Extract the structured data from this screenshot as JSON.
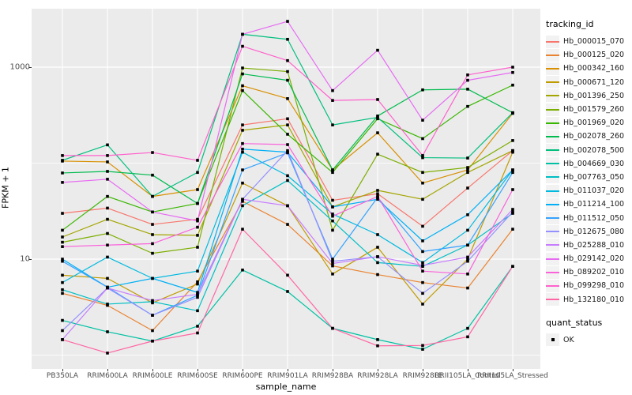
{
  "chart_data": {
    "type": "line",
    "title": "",
    "xlabel": "sample_name",
    "ylabel": "FPKM + 1",
    "y_scale": "log10",
    "y_ticks": [
      10,
      1000
    ],
    "y_minor_gridlines": [
      1,
      100
    ],
    "ylim": [
      0.75,
      4200
    ],
    "grid": true,
    "panel_bg": "#EBEBEB",
    "gridline_color": "#FFFFFF",
    "point_color": "#000000",
    "point_shape": "square",
    "legend_position": "right",
    "legend_title": "tracking_id",
    "categories": [
      "PB350LA",
      "RRIM600LA",
      "RRIM600LE",
      "RRIM600SE",
      "RRIM600PE",
      "RRIM901LA",
      "RRIM928BA",
      "RRIM928LA",
      "RRIM928LE",
      "RRII105LA_Control",
      "RRII105LA_Stressed"
    ],
    "series": [
      {
        "name": "Hb_000015_070",
        "color": "#F8766D",
        "values": [
          30,
          34,
          23,
          26,
          250,
          290,
          41,
          48,
          22,
          55,
          135
        ]
      },
      {
        "name": "Hb_000125_020",
        "color": "#EA8331",
        "values": [
          4.4,
          3.3,
          1.8,
          5.8,
          40,
          23,
          8.5,
          6.9,
          5.7,
          5.0,
          20.5
        ]
      },
      {
        "name": "Hb_000342_160",
        "color": "#D89000",
        "values": [
          105,
          103,
          45,
          53,
          640,
          470,
          85,
          207,
          62,
          85,
          330
        ]
      },
      {
        "name": "Hb_000671_120",
        "color": "#C09B00",
        "values": [
          6.8,
          6.3,
          3.5,
          5.5,
          62,
          36,
          7.0,
          13.3,
          3.4,
          10,
          130
        ]
      },
      {
        "name": "Hb_001396_250",
        "color": "#A3A500",
        "values": [
          17,
          26,
          18,
          17.7,
          220,
          250,
          35,
          52,
          42,
          80,
          135
        ]
      },
      {
        "name": "Hb_001579_260",
        "color": "#7CAE00",
        "values": [
          15,
          18.5,
          11.5,
          13.3,
          980,
          900,
          20,
          124,
          80,
          90,
          172
        ]
      },
      {
        "name": "Hb_001969_020",
        "color": "#39B600",
        "values": [
          20,
          45,
          31,
          38,
          570,
          200,
          80,
          290,
          180,
          390,
          650
        ]
      },
      {
        "name": "Hb_002078_260",
        "color": "#00BB4E",
        "values": [
          79,
          82,
          75,
          38,
          850,
          730,
          85,
          310,
          580,
          590,
          335
        ]
      },
      {
        "name": "Hb_002078_500",
        "color": "#00BF7D",
        "values": [
          107,
          155,
          45,
          80,
          2200,
          1950,
          250,
          300,
          114,
          113,
          335
        ]
      },
      {
        "name": "Hb_004669_030",
        "color": "#00C1A3",
        "values": [
          2.3,
          1.75,
          1.4,
          2.0,
          7.7,
          4.6,
          1.9,
          1.45,
          1.15,
          1.9,
          8.4
        ]
      },
      {
        "name": "Hb_007763_050",
        "color": "#00BFC4",
        "values": [
          4.8,
          3.4,
          3.6,
          2.9,
          36,
          66,
          25,
          9.2,
          8.4,
          14,
          30
        ]
      },
      {
        "name": "Hb_011037_020",
        "color": "#00BAE0",
        "values": [
          5.7,
          10.5,
          6.3,
          7.5,
          130,
          74,
          29.5,
          18,
          9.2,
          20,
          85
        ]
      },
      {
        "name": "Hb_011214_100",
        "color": "#00B0F6",
        "values": [
          10,
          5.1,
          6.3,
          4.5,
          140,
          130,
          35,
          42,
          15.5,
          29,
          85
        ]
      },
      {
        "name": "Hb_011512_050",
        "color": "#35A2FF",
        "values": [
          9.5,
          5.1,
          2.6,
          4.2,
          85,
          128,
          10,
          44,
          12,
          14,
          80
        ]
      },
      {
        "name": "Hb_012675_080",
        "color": "#9590FF",
        "values": [
          1.8,
          5.0,
          2.6,
          4.0,
          42,
          135,
          9.5,
          10.6,
          4.4,
          9.5,
          31
        ]
      },
      {
        "name": "Hb_025288_010",
        "color": "#C77CFF",
        "values": [
          1.45,
          5.0,
          3.7,
          4.3,
          42,
          36,
          9.0,
          10.6,
          8.6,
          10.5,
          33
        ]
      },
      {
        "name": "Hb_029142_020",
        "color": "#E76BF3",
        "values": [
          63,
          68,
          31,
          25,
          2200,
          3000,
          570,
          1500,
          280,
          730,
          880
        ]
      },
      {
        "name": "Hb_089202_010",
        "color": "#FA62DB",
        "values": [
          13.5,
          14,
          14.5,
          21.5,
          160,
          156,
          28,
          45,
          7.5,
          7.0,
          53
        ]
      },
      {
        "name": "Hb_099298_010",
        "color": "#FF61CC",
        "values": [
          120,
          120,
          129,
          107,
          1650,
          1170,
          450,
          460,
          120,
          830,
          1000
        ]
      },
      {
        "name": "Hb_132180_010",
        "color": "#FF67A4",
        "values": [
          1.45,
          1.05,
          1.4,
          1.7,
          20.5,
          6.8,
          1.9,
          1.25,
          1.26,
          1.55,
          8.4
        ]
      }
    ],
    "legend2_title": "quant_status",
    "legend2_items": [
      {
        "label": "OK",
        "marker": "black-square"
      }
    ]
  }
}
